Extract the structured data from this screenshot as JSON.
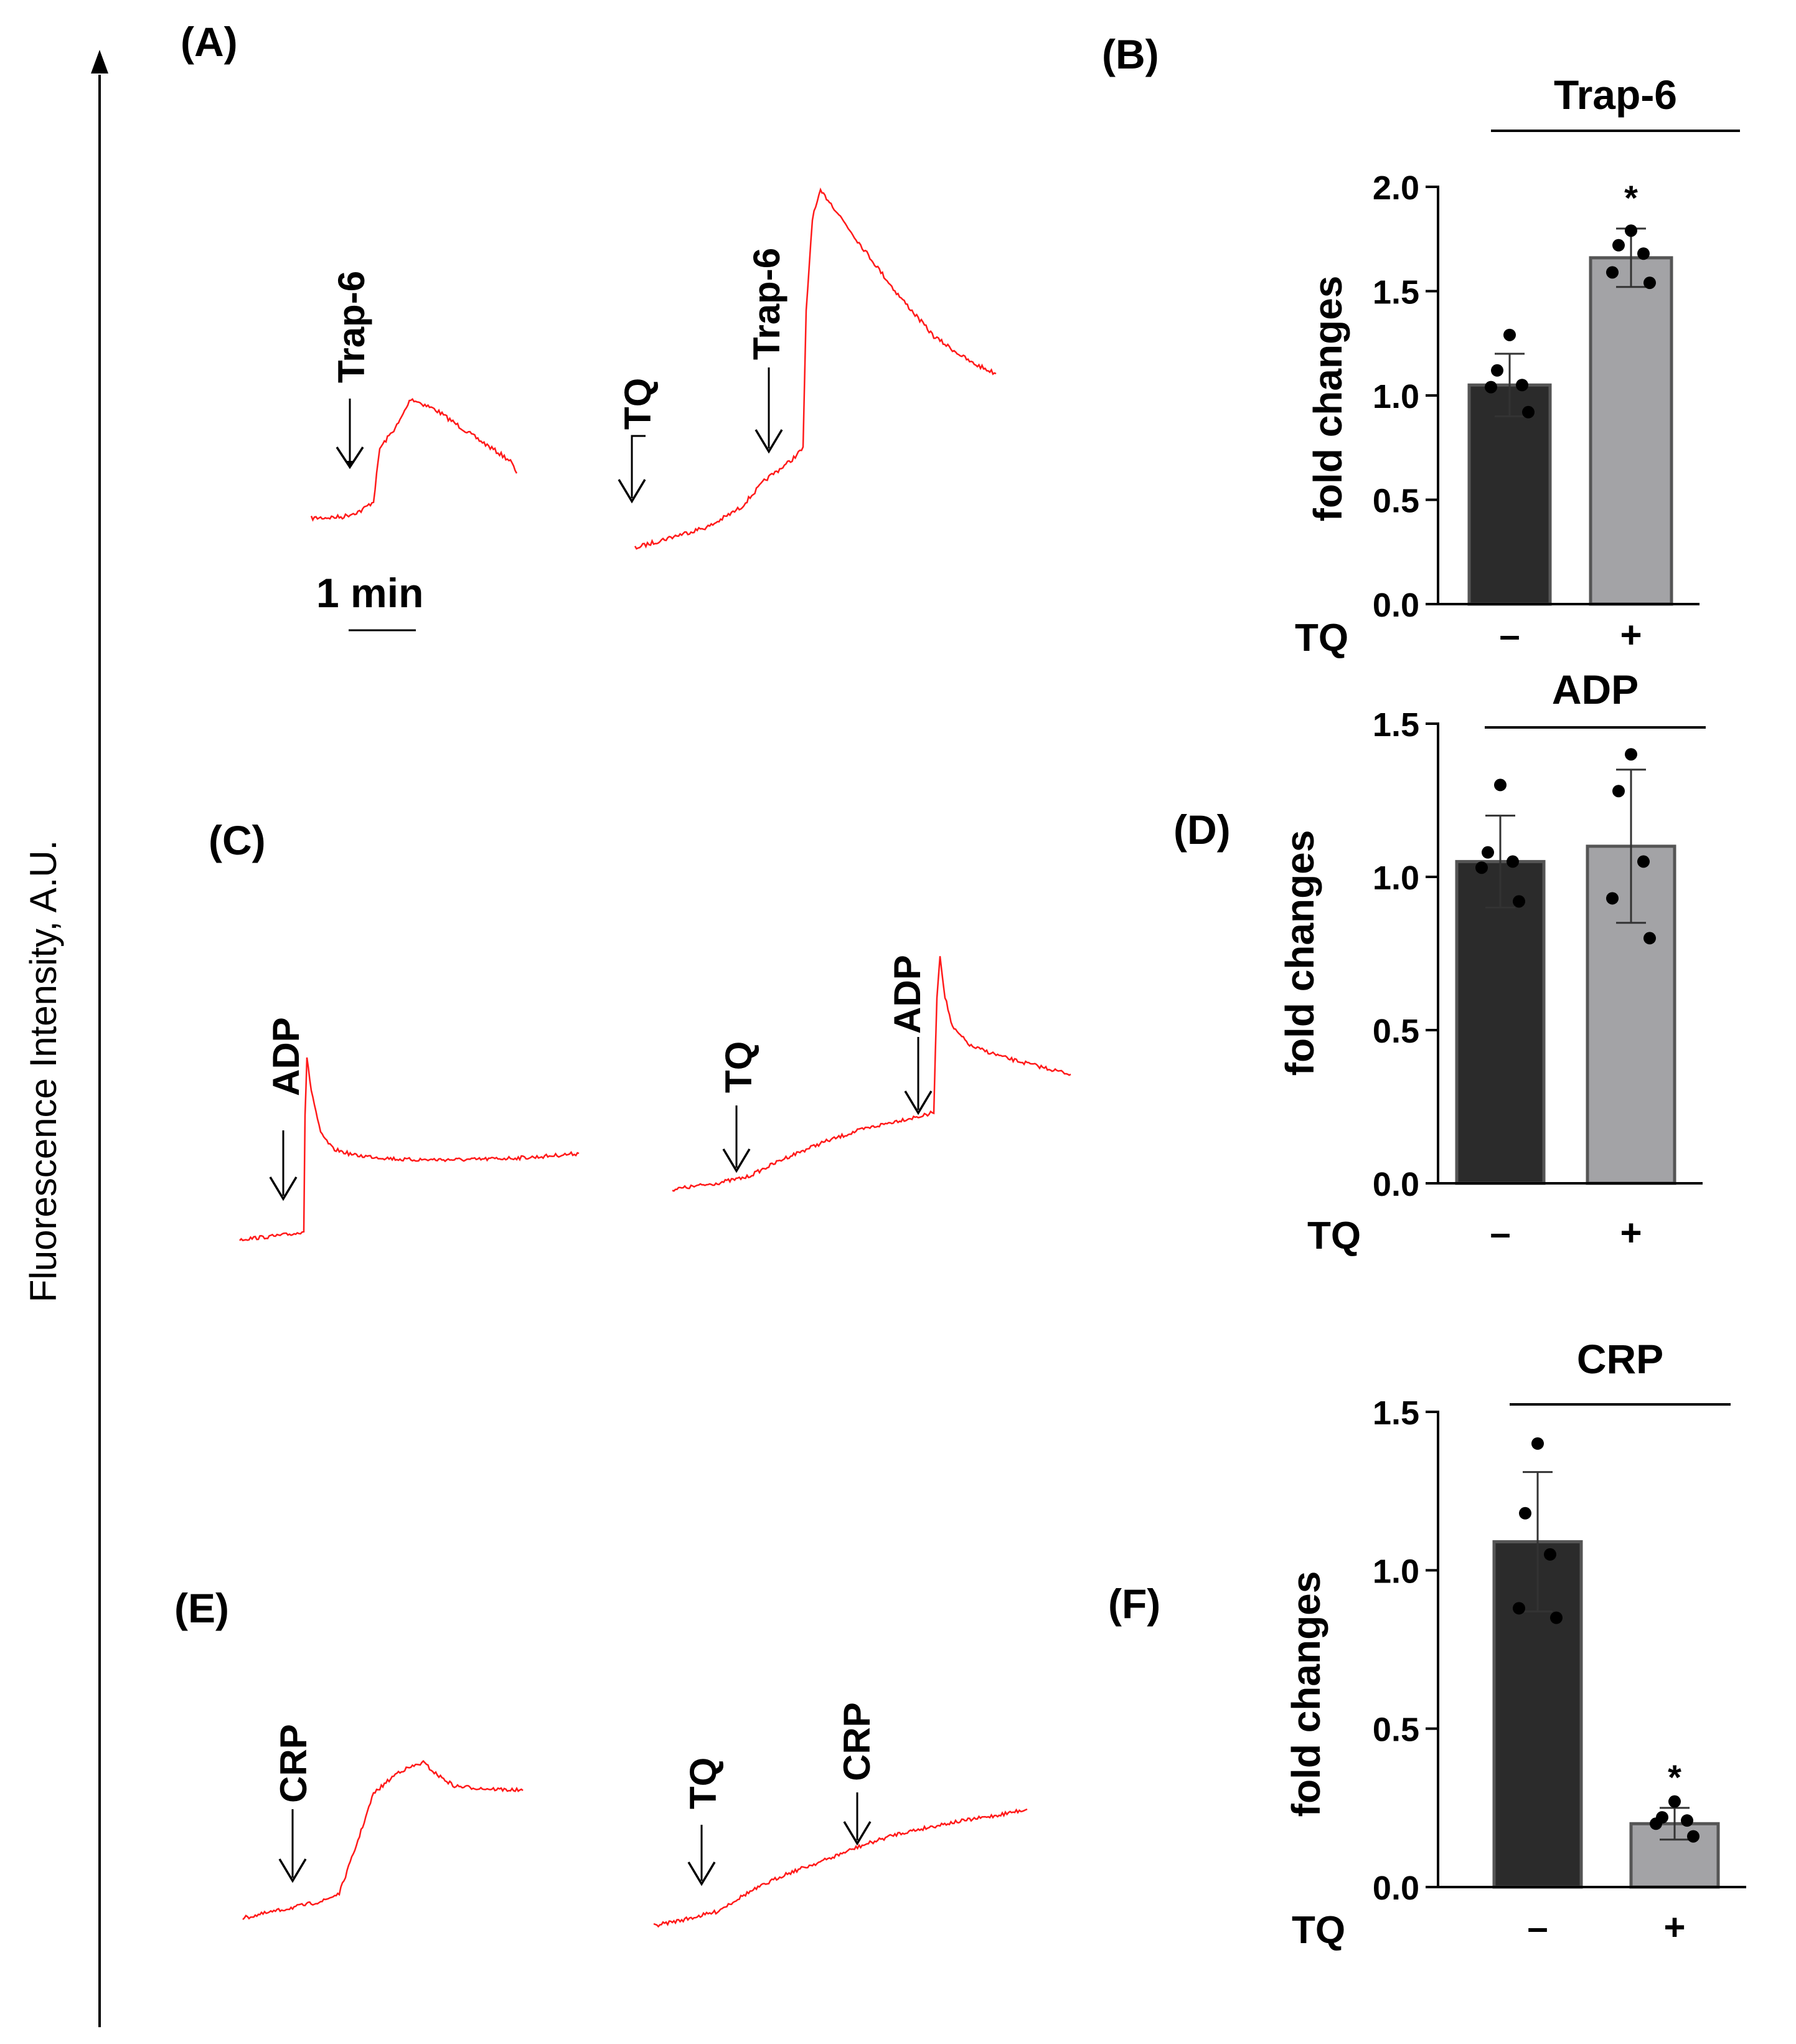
{
  "figure": {
    "y_axis_label": "Fluorescence Intensity, A.U.",
    "scale_bar_label": "1 min",
    "trace_color": "#ff1a1a"
  },
  "panels": {
    "A": {
      "label": "(A)",
      "traces": [
        {
          "arrows": [
            {
              "label": "Trap-6"
            }
          ]
        },
        {
          "arrows": [
            {
              "label": "TQ"
            },
            {
              "label": "Trap-6"
            }
          ]
        }
      ]
    },
    "C": {
      "label": "(C)",
      "traces": [
        {
          "arrows": [
            {
              "label": "ADP"
            }
          ]
        },
        {
          "arrows": [
            {
              "label": "TQ"
            },
            {
              "label": "ADP"
            }
          ]
        }
      ]
    },
    "E": {
      "label": "(E)",
      "traces": [
        {
          "arrows": [
            {
              "label": "CRP"
            }
          ]
        },
        {
          "arrows": [
            {
              "label": "TQ"
            },
            {
              "label": "CRP"
            }
          ]
        }
      ]
    }
  },
  "chart_data": [
    {
      "panel_label": "(B)",
      "type": "bar",
      "title": "Trap-6",
      "ylabel": "fold changes",
      "row_label": "TQ",
      "categories": [
        "–",
        "+"
      ],
      "values": [
        1.05,
        1.66
      ],
      "errors": [
        0.15,
        0.14
      ],
      "points": [
        [
          1.29,
          1.12,
          1.05,
          1.04,
          0.92
        ],
        [
          1.79,
          1.72,
          1.68,
          1.59,
          1.54
        ]
      ],
      "significance": [
        "",
        "*"
      ],
      "ylim": [
        0,
        2.0
      ],
      "yticks": [
        0.0,
        0.5,
        1.0,
        1.5,
        2.0
      ],
      "ytick_labels": [
        "0.0",
        "0.5",
        "1.0",
        "1.5",
        "2.0"
      ],
      "bar_colors": [
        "#2b2b2b",
        "#a3a3a6"
      ]
    },
    {
      "panel_label": "(D)",
      "type": "bar",
      "title": "ADP",
      "ylabel": "fold changes",
      "row_label": "TQ",
      "categories": [
        "–",
        "+"
      ],
      "values": [
        1.05,
        1.1
      ],
      "errors": [
        0.15,
        0.25
      ],
      "points": [
        [
          1.3,
          1.08,
          1.05,
          1.03,
          0.92
        ],
        [
          1.4,
          1.28,
          1.05,
          0.93,
          0.8
        ]
      ],
      "significance": [
        "",
        ""
      ],
      "ylim": [
        0,
        1.5
      ],
      "yticks": [
        0.0,
        0.5,
        1.0,
        1.5
      ],
      "ytick_labels": [
        "0.0",
        "0.5",
        "1.0",
        "1.5"
      ],
      "bar_colors": [
        "#2b2b2b",
        "#a3a3a6"
      ]
    },
    {
      "panel_label": "(F)",
      "type": "bar",
      "title": "CRP",
      "ylabel": "fold changes",
      "row_label": "TQ",
      "categories": [
        "–",
        "+"
      ],
      "values": [
        1.09,
        0.2
      ],
      "errors": [
        0.22,
        0.05
      ],
      "points": [
        [
          1.4,
          1.18,
          1.05,
          0.88,
          0.85
        ],
        [
          0.27,
          0.22,
          0.21,
          0.2,
          0.16
        ]
      ],
      "significance": [
        "",
        "*"
      ],
      "ylim": [
        0,
        1.5
      ],
      "yticks": [
        0.0,
        0.5,
        1.0,
        1.5
      ],
      "ytick_labels": [
        "0.0",
        "0.5",
        "1.0",
        "1.5"
      ],
      "bar_colors": [
        "#2b2b2b",
        "#a3a3a6"
      ]
    }
  ]
}
